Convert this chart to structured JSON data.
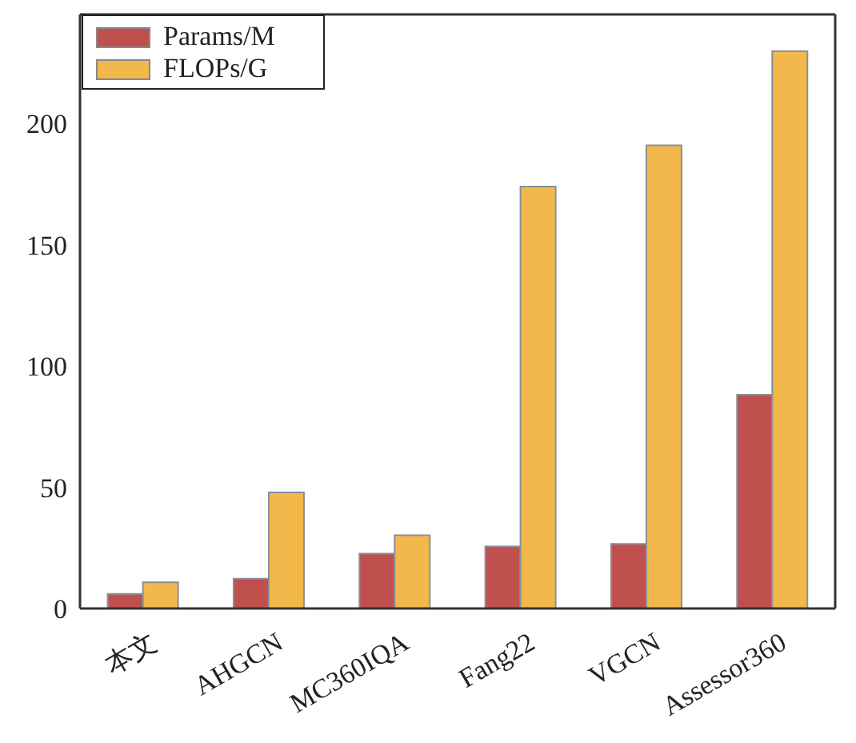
{
  "chart_data": {
    "type": "bar",
    "categories": [
      "本文",
      "AHGCN",
      "MC360IQA",
      "Fang22",
      "VGCN",
      "Assessor360"
    ],
    "series": [
      {
        "name": "Params/M",
        "color": "#c0504d",
        "values": [
          6,
          12.3,
          22.6,
          25.6,
          26.7,
          88.2
        ]
      },
      {
        "name": "FLOPs/G",
        "color": "#f2b84b",
        "values": [
          10.8,
          47.9,
          30.2,
          174,
          191,
          229.8
        ]
      }
    ],
    "ylim": [
      0,
      245
    ],
    "yticks": [
      0,
      50,
      100,
      150,
      200
    ],
    "legend": "top left"
  }
}
